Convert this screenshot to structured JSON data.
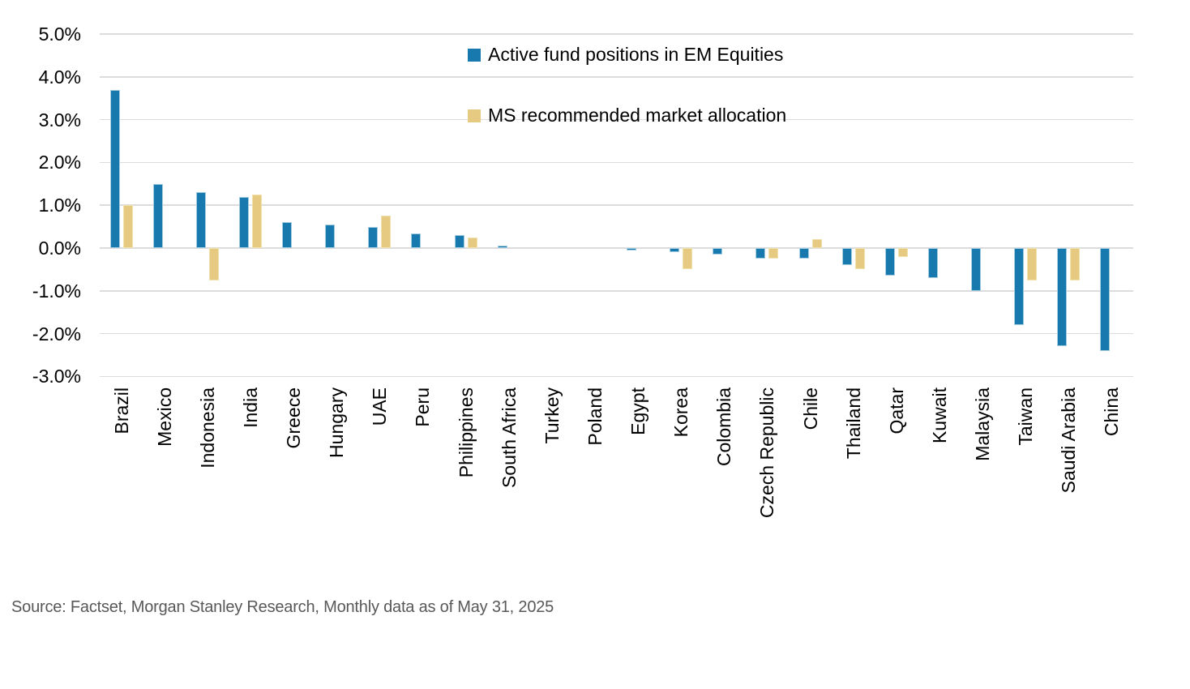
{
  "chart_data": {
    "type": "bar",
    "title": "",
    "categories": [
      "Brazil",
      "Mexico",
      "Indonesia",
      "India",
      "Greece",
      "Hungary",
      "UAE",
      "Peru",
      "Philippines",
      "South Africa",
      "Turkey",
      "Poland",
      "Egypt",
      "Korea",
      "Colombia",
      "Czech Republic",
      "Chile",
      "Thailand",
      "Qatar",
      "Kuwait",
      "Malaysia",
      "Taiwan",
      "Saudi Arabia",
      "China"
    ],
    "series": [
      {
        "name": "Active fund positions in EM Equities",
        "color": "#1879ae",
        "border_color": "#a5cde2",
        "values": [
          3.7,
          1.5,
          1.3,
          1.2,
          0.6,
          0.55,
          0.5,
          0.35,
          0.3,
          0.05,
          0,
          0,
          -0.05,
          -0.1,
          -0.15,
          -0.25,
          -0.25,
          -0.4,
          -0.65,
          -0.7,
          -1.0,
          -1.8,
          -2.3,
          -2.4
        ]
      },
      {
        "name": "MS recommended market allocation",
        "color": "#e6ca81",
        "border_color": "#f0e1ad",
        "values": [
          1.0,
          null,
          -0.75,
          1.25,
          null,
          null,
          0.75,
          null,
          0.25,
          null,
          null,
          null,
          null,
          -0.5,
          null,
          -0.25,
          0.2,
          -0.5,
          -0.2,
          null,
          null,
          -0.75,
          -0.75,
          null
        ]
      }
    ],
    "ylim": [
      -3.0,
      5.0
    ],
    "ytick_step": 1.0,
    "ytick_labels": [
      "5.0%",
      "4.0%",
      "3.0%",
      "2.0%",
      "1.0%",
      "0.0%",
      "-1.0%",
      "-2.0%",
      "-3.0%"
    ],
    "value_unit": "%",
    "grid": true,
    "legend_position": "top-center-overlay",
    "xlabel": "",
    "ylabel": ""
  },
  "colors": {
    "active_series": "#1879ae",
    "recommended_series": "#e6ca81",
    "gridline": "#dcdcdc",
    "axis_text": "#000000",
    "source_text": "#58585a",
    "background": "#ffffff"
  },
  "source": "Source: Factset, Morgan Stanley Research, Monthly data as of May 31, 2025"
}
